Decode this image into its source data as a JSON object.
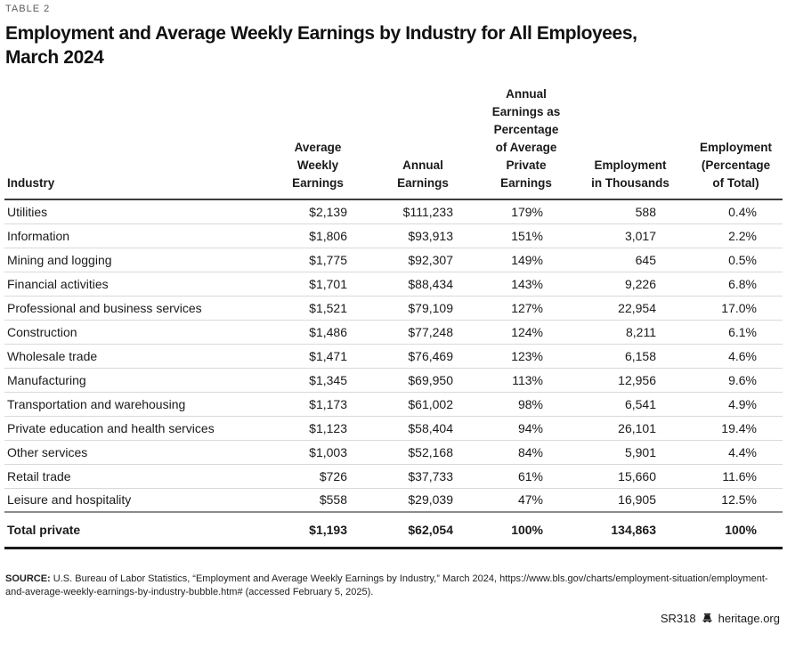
{
  "colors": {
    "text": "#1a1a1a",
    "label_gray": "#5a5a5a",
    "row_divider": "#d9d9d9",
    "header_rule": "#3c3c3c",
    "total_top_rule": "#8c8c8c",
    "background": "#ffffff"
  },
  "table_label": "TABLE 2",
  "title_line1": "Employment and Average Weekly Earnings by Industry for All Employees,",
  "title_line2": "March 2024",
  "table": {
    "columns": [
      "Industry",
      "Average\nWeekly\nEarnings",
      "Annual\nEarnings",
      "Annual\nEarnings as\nPercentage\nof Average\nPrivate\nEarnings",
      "Employment\nin Thousands",
      "Employment\n(Percentage\nof Total)"
    ],
    "rows": [
      [
        "Utilities",
        "$2,139",
        "$111,233",
        "179%",
        "588",
        "0.4%"
      ],
      [
        "Information",
        "$1,806",
        "$93,913",
        "151%",
        "3,017",
        "2.2%"
      ],
      [
        "Mining and logging",
        "$1,775",
        "$92,307",
        "149%",
        "645",
        "0.5%"
      ],
      [
        "Financial activities",
        "$1,701",
        "$88,434",
        "143%",
        "9,226",
        "6.8%"
      ],
      [
        "Professional and business services",
        "$1,521",
        "$79,109",
        "127%",
        "22,954",
        "17.0%"
      ],
      [
        "Construction",
        "$1,486",
        "$77,248",
        "124%",
        "8,211",
        "6.1%"
      ],
      [
        "Wholesale trade",
        "$1,471",
        "$76,469",
        "123%",
        "6,158",
        "4.6%"
      ],
      [
        "Manufacturing",
        "$1,345",
        "$69,950",
        "113%",
        "12,956",
        "9.6%"
      ],
      [
        "Transportation and warehousing",
        "$1,173",
        "$61,002",
        "98%",
        "6,541",
        "4.9%"
      ],
      [
        "Private education and health services",
        "$1,123",
        "$58,404",
        "94%",
        "26,101",
        "19.4%"
      ],
      [
        "Other services",
        "$1,003",
        "$52,168",
        "84%",
        "5,901",
        "4.4%"
      ],
      [
        "Retail trade",
        "$726",
        "$37,733",
        "61%",
        "15,660",
        "11.6%"
      ],
      [
        "Leisure and hospitality",
        "$558",
        "$29,039",
        "47%",
        "16,905",
        "12.5%"
      ]
    ],
    "total_row": [
      "Total private",
      "$1,193",
      "$62,054",
      "100%",
      "134,863",
      "100%"
    ]
  },
  "source": {
    "label": "SOURCE:",
    "text": " U.S. Bureau of Labor Statistics, “Employment and Average Weekly Earnings by Industry,” March 2024, https://www.bls.gov/charts/employment-situation/employment-and-average-weekly-earnings-by-industry-bubble.htm# (accessed February 5, 2025)."
  },
  "footer": {
    "report_id": "SR318",
    "logo": "liberty-bell-icon",
    "site": "heritage.org"
  }
}
